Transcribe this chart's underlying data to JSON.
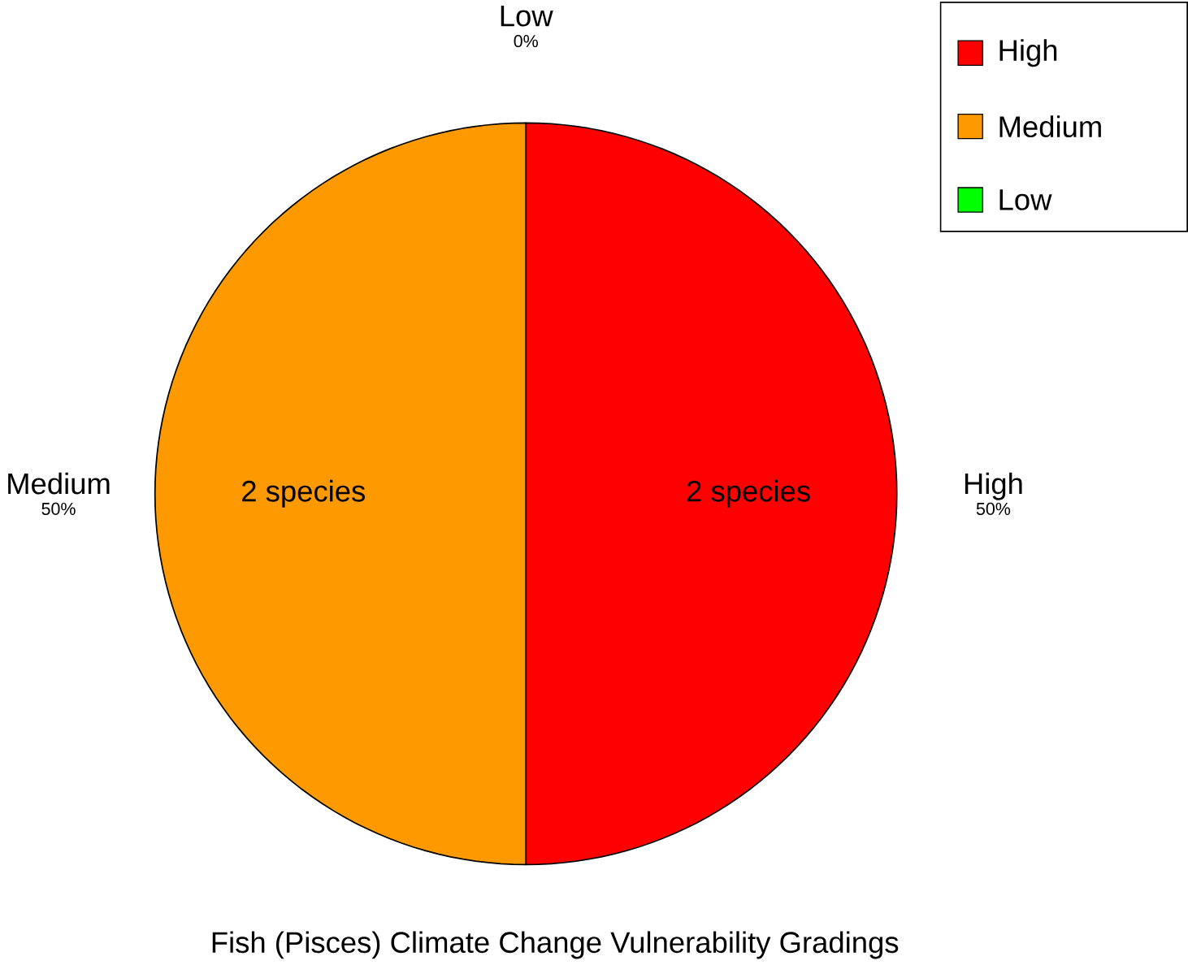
{
  "chart_data": {
    "type": "pie",
    "title": "Fish (Pisces) Climate Change Vulnerability Gradings",
    "categories": [
      "High",
      "Medium",
      "Low"
    ],
    "values": [
      50,
      50,
      0
    ],
    "colors": [
      "#ff0000",
      "#ff9900",
      "#00ff00"
    ],
    "value_labels": [
      "50%",
      "50%",
      "0%"
    ],
    "annotations": [
      {
        "text": "2 species",
        "x": "High"
      },
      {
        "text": "2 species",
        "x": "Medium"
      }
    ],
    "legend": "top right"
  }
}
